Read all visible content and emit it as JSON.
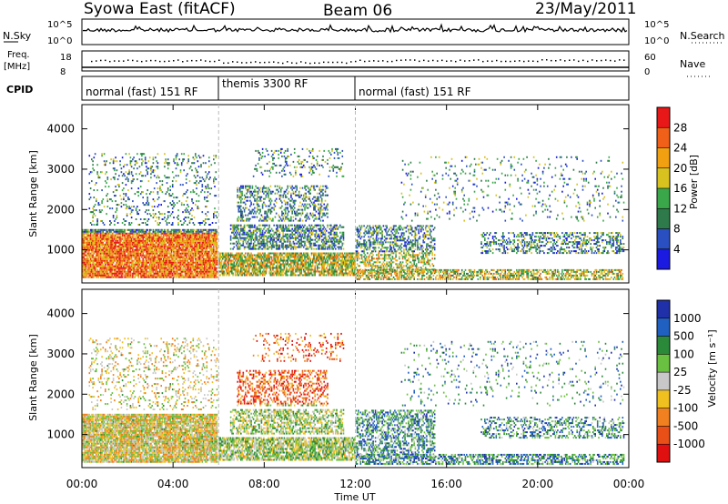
{
  "header": {
    "station": "Syowa East (fitACF)",
    "beam": "Beam 06",
    "date": "23/May/2011"
  },
  "top_panels": {
    "nsky_label": "N.Sky",
    "nsearch_label": "N.Search",
    "nsky_ticks": [
      "10^5",
      "10^0"
    ],
    "nsky_right_ticks": [
      "10^5",
      "10^0"
    ],
    "freq_label_line1": "Freq.",
    "freq_label_line2": "[MHz]",
    "freq_ticks": [
      "18",
      "8"
    ],
    "nave_label": "Nave",
    "nave_ticks": [
      "60",
      "0"
    ],
    "cpid_label": "CPID",
    "cpid_segments": [
      "normal (fast) 151 RF",
      "themis 3300 RF",
      "normal (fast) 151 RF"
    ]
  },
  "chart_data": [
    {
      "type": "heatmap",
      "title": "",
      "xlabel": "Time UT",
      "ylabel": "Slant Range [km]",
      "x_ticks": [
        "00:00",
        "04:00",
        "08:00",
        "12:00",
        "16:00",
        "20:00",
        "00:00"
      ],
      "y_ticks": [
        "1000",
        "2000",
        "3000",
        "4000"
      ],
      "xlim_hours": [
        0,
        24
      ],
      "ylim": [
        180,
        4600
      ],
      "colorbar_label": "Power [dB]",
      "colorbar_ticks": [
        "28",
        "24",
        "20",
        "16",
        "12",
        "8",
        "4"
      ],
      "colors": [
        "#1a1ae0",
        "#2a4fc0",
        "#2f7a4a",
        "#3aa84a",
        "#d8c220",
        "#f0a010",
        "#f06018",
        "#e81818"
      ]
    },
    {
      "type": "heatmap",
      "title": "",
      "xlabel": "Time UT",
      "ylabel": "Slant Range [km]",
      "x_ticks": [
        "00:00",
        "04:00",
        "08:00",
        "12:00",
        "16:00",
        "20:00",
        "00:00"
      ],
      "y_ticks": [
        "1000",
        "2000",
        "3000",
        "4000"
      ],
      "xlim_hours": [
        0,
        24
      ],
      "ylim": [
        180,
        4600
      ],
      "colorbar_label": "Velocity [m s⁻¹]",
      "colorbar_ticks": [
        "1000",
        "500",
        "100",
        "25",
        "-25",
        "-100",
        "-500",
        "-1000"
      ],
      "colors": [
        "#2030a8",
        "#2060c0",
        "#2a8a3a",
        "#6ac040",
        "#c8c8c8",
        "#f0c020",
        "#f08020",
        "#e85018",
        "#e01010"
      ]
    }
  ]
}
